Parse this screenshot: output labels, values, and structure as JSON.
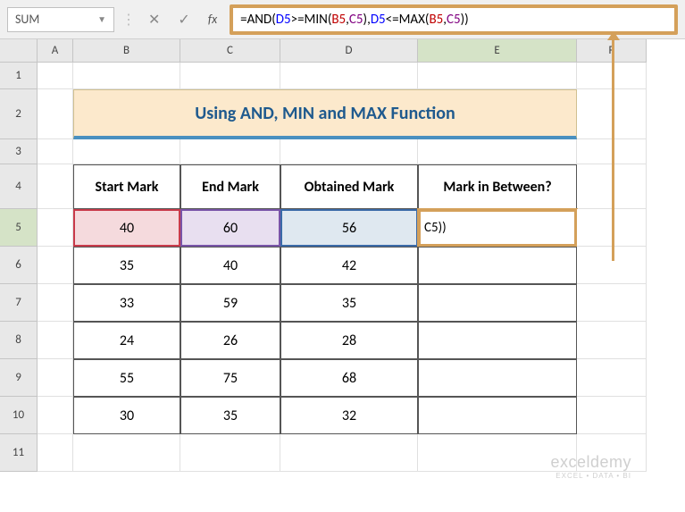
{
  "name_box": "SUM",
  "formula_parts": [
    {
      "text": "=AND(",
      "class": "f-black"
    },
    {
      "text": "D5",
      "class": "f-blue"
    },
    {
      "text": ">=MIN(",
      "class": "f-black"
    },
    {
      "text": "B5",
      "class": "f-red"
    },
    {
      "text": ",",
      "class": "f-black"
    },
    {
      "text": "C5",
      "class": "f-purple"
    },
    {
      "text": "),",
      "class": "f-black"
    },
    {
      "text": "D5",
      "class": "f-blue"
    },
    {
      "text": "<=MAX(",
      "class": "f-black"
    },
    {
      "text": "B5",
      "class": "f-red"
    },
    {
      "text": ",",
      "class": "f-black"
    },
    {
      "text": "C5",
      "class": "f-purple"
    },
    {
      "text": "))",
      "class": "f-black"
    }
  ],
  "col_labels": [
    "A",
    "B",
    "C",
    "D",
    "E",
    "F"
  ],
  "row_labels": [
    "1",
    "2",
    "3",
    "4",
    "5",
    "6",
    "7",
    "8",
    "9",
    "10",
    "11"
  ],
  "title": "Using AND, MIN and MAX Function",
  "headers": {
    "b": "Start Mark",
    "c": "End Mark",
    "d": "Obtained Mark",
    "e": "Mark in Between?"
  },
  "rows": [
    {
      "b": "40",
      "c": "60",
      "d": "56",
      "e": "C5))"
    },
    {
      "b": "35",
      "c": "40",
      "d": "42",
      "e": ""
    },
    {
      "b": "33",
      "c": "59",
      "d": "35",
      "e": ""
    },
    {
      "b": "24",
      "c": "26",
      "d": "28",
      "e": ""
    },
    {
      "b": "55",
      "c": "75",
      "d": "68",
      "e": ""
    },
    {
      "b": "30",
      "c": "35",
      "d": "32",
      "e": ""
    }
  ],
  "watermark": {
    "main": "exceldemy",
    "sub": "EXCEL • DATA • BI"
  }
}
